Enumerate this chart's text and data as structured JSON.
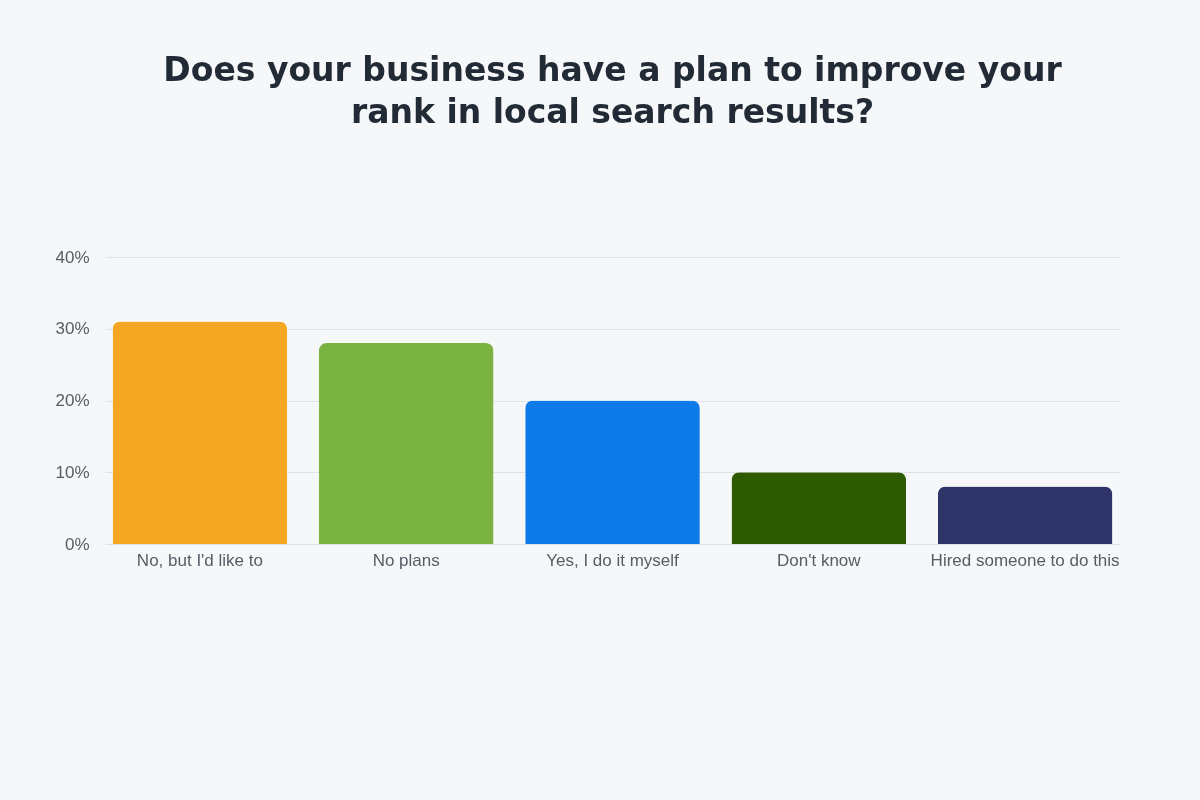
{
  "chart_data": {
    "type": "bar",
    "title": "Does your business have a plan to improve your rank in local search results?",
    "categories": [
      "No, but I'd like to",
      "No plans",
      "Yes, I do it myself",
      "Don't know",
      "Hired someone to do this"
    ],
    "values": [
      31,
      28,
      20,
      10,
      8
    ],
    "colors": [
      "#f5a623",
      "#7ab342",
      "#0d7ae8",
      "#2e5a00",
      "#2e3368"
    ],
    "ylim": [
      0,
      40
    ],
    "yticks": [
      {
        "value": 0,
        "label": "0%"
      },
      {
        "value": 10,
        "label": "10%"
      },
      {
        "value": 20,
        "label": "20%"
      },
      {
        "value": 30,
        "label": "30%"
      },
      {
        "value": 40,
        "label": "40%"
      }
    ],
    "grid": "y",
    "legend": false
  }
}
